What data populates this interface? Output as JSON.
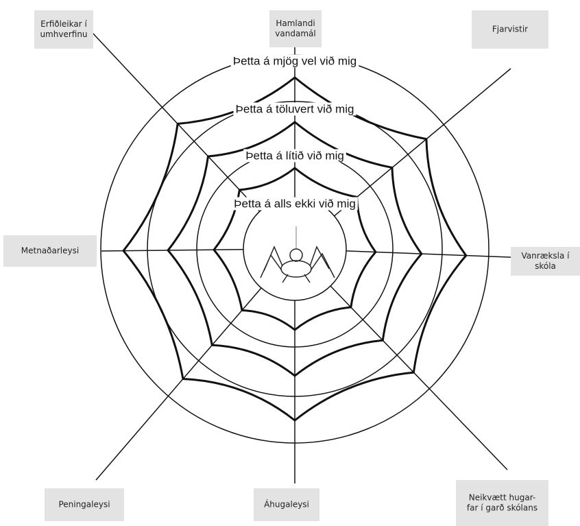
{
  "labels": [
    {
      "lines": [
        "Erfiðleikar í",
        "umhverfinu"
      ]
    },
    {
      "lines": [
        "Hamlandi",
        "vandamál"
      ]
    },
    {
      "lines": [
        "Fjarvistir"
      ]
    },
    {
      "lines": [
        "Vanræksla í",
        "skóla"
      ]
    },
    {
      "lines": [
        "Neikvætt hugar-",
        "far í garð skólans"
      ]
    },
    {
      "lines": [
        "Áhugaleysi"
      ]
    },
    {
      "lines": [
        "Peningaleysi"
      ]
    },
    {
      "lines": [
        "Metnaðarleysi"
      ]
    }
  ],
  "rings": [
    "Þetta á mjög vel við mig",
    "Þetta á töluvert við mig",
    "Þetta á lítið við mig",
    "Þetta á alls ekki við mig"
  ]
}
